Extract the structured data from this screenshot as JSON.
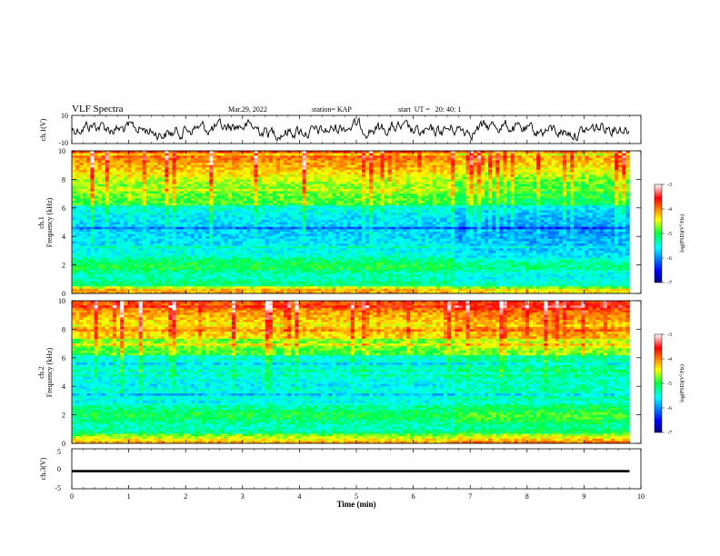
{
  "header": {
    "title": "VLF Spectra",
    "date": "Mar.29, 2022",
    "station": "station= KAP",
    "start_ut": "start  UT =   20: 40: 1"
  },
  "chart_data": [
    {
      "type": "line",
      "panel": "ch1-waveform",
      "ylabel": "ch.1(V)",
      "ylim": [
        -10,
        10
      ],
      "y_ticks": [
        "10",
        "-10"
      ],
      "xlim": [
        0,
        10
      ]
    },
    {
      "type": "heatmap",
      "panel": "ch1-spectrogram",
      "ylabel": "ch.1\nFrequency (kHz)",
      "ylim": [
        0,
        10
      ],
      "y_ticks": [
        "0",
        "2",
        "4",
        "6",
        "8",
        "10"
      ],
      "xlim": [
        0,
        10
      ],
      "data_end_min": 9.8,
      "colorbar": {
        "label": "log(PSD)(V²/Hz)",
        "range": [
          -7,
          -3
        ],
        "ticks": [
          "-3",
          "-4",
          "-5",
          "-6",
          "-7"
        ]
      }
    },
    {
      "type": "heatmap",
      "panel": "ch2-spectrogram",
      "ylabel": "ch.2\nFrequency (kHz)",
      "ylim": [
        0,
        10
      ],
      "y_ticks": [
        "0",
        "2",
        "4",
        "6",
        "8",
        "10"
      ],
      "xlim": [
        0,
        10
      ],
      "data_end_min": 9.8,
      "colorbar": {
        "label": "log(PSD)(V²/Hz)",
        "range": [
          -7,
          -3
        ],
        "ticks": [
          "-3",
          "-4",
          "-5",
          "-6",
          "-7"
        ]
      }
    },
    {
      "type": "line",
      "panel": "ch3-signal",
      "ylabel": "ch.3(V)",
      "ylim": [
        -5,
        5
      ],
      "y_ticks": [
        "5",
        "0",
        "-5"
      ],
      "xlim": [
        0,
        10
      ],
      "level": [
        -0.9,
        -0.3
      ],
      "xlabel": "Time (min)",
      "x_ticks": [
        "0",
        "1",
        "2",
        "3",
        "4",
        "5",
        "6",
        "7",
        "8",
        "9",
        "10"
      ]
    }
  ]
}
